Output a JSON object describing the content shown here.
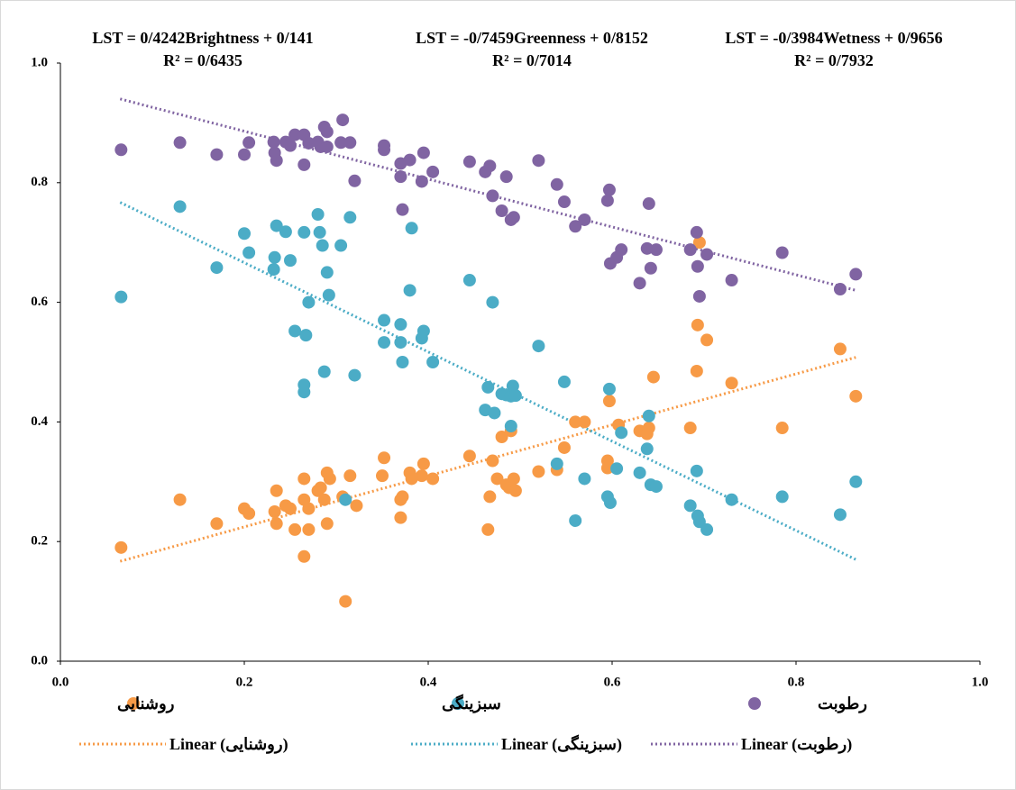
{
  "chart_data": {
    "type": "scatter",
    "annotations": [
      {
        "equation": "LST = 0/4242Brightness + 0/141",
        "r2": "R² = 0/6435"
      },
      {
        "equation": "LST = -0/7459Greenness + 0/8152",
        "r2": "R² = 0/7014"
      },
      {
        "equation": "LST = -0/3984Wetness + 0/9656",
        "r2": "R² = 0/7932"
      }
    ],
    "xlim": [
      0,
      1
    ],
    "ylim": [
      0,
      1
    ],
    "xticks": [
      {
        "value": 0,
        "label": "0.0"
      },
      0.2,
      0.4,
      0.6,
      0.8,
      {
        "value": 1,
        "label": "1.0"
      }
    ],
    "yticks": [
      {
        "value": 0,
        "label": "0.0"
      },
      0.2,
      0.4,
      0.6,
      0.8,
      {
        "value": 1,
        "label": "1.0"
      }
    ],
    "series": [
      {
        "name": "روشنایی",
        "color": "#f79a46",
        "x": [
          0.066,
          0.13,
          0.17,
          0.2,
          0.205,
          0.235,
          0.235,
          0.233,
          0.245,
          0.25,
          0.255,
          0.265,
          0.265,
          0.265,
          0.27,
          0.27,
          0.28,
          0.283,
          0.287,
          0.29,
          0.29,
          0.293,
          0.307,
          0.31,
          0.315,
          0.322,
          0.35,
          0.352,
          0.37,
          0.37,
          0.372,
          0.38,
          0.382,
          0.393,
          0.395,
          0.405,
          0.445,
          0.465,
          0.467,
          0.47,
          0.475,
          0.48,
          0.485,
          0.488,
          0.49,
          0.493,
          0.495,
          0.52,
          0.54,
          0.548,
          0.56,
          0.57,
          0.595,
          0.595,
          0.597,
          0.607,
          0.63,
          0.638,
          0.64,
          0.645,
          0.685,
          0.692,
          0.693,
          0.695,
          0.703,
          0.73,
          0.785,
          0.848,
          0.865
        ],
        "values": [
          0.19,
          0.27,
          0.23,
          0.255,
          0.247,
          0.285,
          0.23,
          0.25,
          0.26,
          0.255,
          0.22,
          0.305,
          0.27,
          0.175,
          0.22,
          0.255,
          0.285,
          0.29,
          0.27,
          0.315,
          0.23,
          0.305,
          0.275,
          0.1,
          0.31,
          0.26,
          0.31,
          0.34,
          0.27,
          0.24,
          0.275,
          0.315,
          0.305,
          0.31,
          0.33,
          0.305,
          0.343,
          0.22,
          0.275,
          0.335,
          0.305,
          0.375,
          0.295,
          0.29,
          0.385,
          0.305,
          0.285,
          0.317,
          0.32,
          0.357,
          0.4,
          0.4,
          0.335,
          0.323,
          0.435,
          0.395,
          0.385,
          0.38,
          0.39,
          0.475,
          0.39,
          0.485,
          0.562,
          0.7,
          0.537,
          0.465,
          0.39,
          0.522,
          0.443
        ]
      },
      {
        "name": "سبزینگی",
        "color": "#4bacc6",
        "x": [
          0.066,
          0.13,
          0.17,
          0.2,
          0.205,
          0.232,
          0.233,
          0.235,
          0.245,
          0.25,
          0.255,
          0.265,
          0.265,
          0.265,
          0.267,
          0.27,
          0.28,
          0.282,
          0.285,
          0.287,
          0.29,
          0.292,
          0.305,
          0.31,
          0.315,
          0.32,
          0.352,
          0.352,
          0.37,
          0.37,
          0.372,
          0.38,
          0.382,
          0.393,
          0.395,
          0.405,
          0.445,
          0.462,
          0.465,
          0.47,
          0.472,
          0.48,
          0.485,
          0.49,
          0.49,
          0.492,
          0.495,
          0.52,
          0.54,
          0.548,
          0.56,
          0.57,
          0.595,
          0.597,
          0.598,
          0.605,
          0.61,
          0.63,
          0.638,
          0.64,
          0.642,
          0.648,
          0.685,
          0.692,
          0.693,
          0.695,
          0.703,
          0.73,
          0.785,
          0.848,
          0.865
        ],
        "values": [
          0.609,
          0.76,
          0.658,
          0.715,
          0.683,
          0.655,
          0.675,
          0.728,
          0.718,
          0.67,
          0.552,
          0.462,
          0.45,
          0.717,
          0.545,
          0.6,
          0.747,
          0.717,
          0.695,
          0.484,
          0.65,
          0.612,
          0.695,
          0.27,
          0.742,
          0.478,
          0.533,
          0.57,
          0.533,
          0.563,
          0.5,
          0.62,
          0.724,
          0.54,
          0.552,
          0.5,
          0.637,
          0.42,
          0.458,
          0.6,
          0.415,
          0.447,
          0.445,
          0.393,
          0.443,
          0.46,
          0.444,
          0.527,
          0.33,
          0.467,
          0.235,
          0.305,
          0.275,
          0.455,
          0.265,
          0.322,
          0.382,
          0.315,
          0.355,
          0.41,
          0.295,
          0.292,
          0.26,
          0.318,
          0.243,
          0.233,
          0.22,
          0.27,
          0.275,
          0.245,
          0.3
        ]
      },
      {
        "name": "رطوبت",
        "color": "#8064a2",
        "x": [
          0.066,
          0.13,
          0.17,
          0.2,
          0.205,
          0.232,
          0.233,
          0.235,
          0.245,
          0.25,
          0.255,
          0.265,
          0.265,
          0.27,
          0.28,
          0.283,
          0.287,
          0.29,
          0.29,
          0.305,
          0.307,
          0.315,
          0.32,
          0.352,
          0.352,
          0.37,
          0.37,
          0.372,
          0.38,
          0.393,
          0.395,
          0.405,
          0.445,
          0.462,
          0.467,
          0.47,
          0.48,
          0.485,
          0.49,
          0.493,
          0.52,
          0.54,
          0.548,
          0.56,
          0.57,
          0.595,
          0.597,
          0.598,
          0.605,
          0.61,
          0.63,
          0.638,
          0.64,
          0.642,
          0.648,
          0.685,
          0.692,
          0.693,
          0.695,
          0.703,
          0.73,
          0.785,
          0.848,
          0.865
        ],
        "values": [
          0.855,
          0.867,
          0.847,
          0.847,
          0.867,
          0.868,
          0.85,
          0.837,
          0.868,
          0.862,
          0.88,
          0.83,
          0.88,
          0.866,
          0.868,
          0.86,
          0.893,
          0.885,
          0.86,
          0.867,
          0.905,
          0.867,
          0.803,
          0.862,
          0.855,
          0.81,
          0.832,
          0.755,
          0.838,
          0.802,
          0.85,
          0.818,
          0.835,
          0.818,
          0.828,
          0.778,
          0.753,
          0.81,
          0.738,
          0.742,
          0.837,
          0.797,
          0.768,
          0.727,
          0.738,
          0.77,
          0.788,
          0.665,
          0.675,
          0.688,
          0.632,
          0.69,
          0.765,
          0.657,
          0.688,
          0.688,
          0.717,
          0.66,
          0.61,
          0.68,
          0.637,
          0.683,
          0.622,
          0.647
        ]
      }
    ],
    "trendlines": [
      {
        "name": "Linear (روشنایی)",
        "color": "#f79a46",
        "x": [
          0.065,
          0.865
        ],
        "values": [
          0.167,
          0.508
        ]
      },
      {
        "name": "Linear (سبزینگی)",
        "color": "#4bacc6",
        "x": [
          0.065,
          0.865
        ],
        "values": [
          0.767,
          0.17
        ]
      },
      {
        "name": "Linear (رطوبت)",
        "color": "#8064a2",
        "x": [
          0.065,
          0.865
        ],
        "values": [
          0.94,
          0.62
        ]
      }
    ]
  }
}
